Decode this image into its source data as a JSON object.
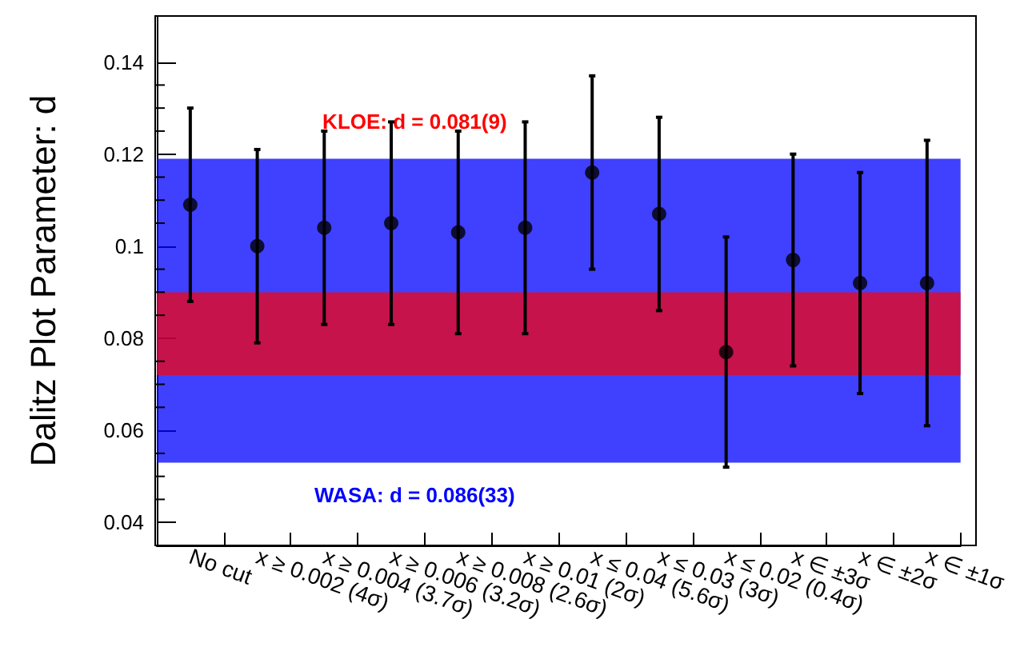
{
  "chart_data": {
    "type": "scatter",
    "ylabel": "Dalitz Plot Parameter: d",
    "categories": [
      "No cut",
      "x ≥ 0.002 (4σ)",
      "x ≥ 0.004 (3.7σ)",
      "x ≥ 0.006 (3.2σ)",
      "x ≥ 0.008 (2.6σ)",
      "x ≥ 0.01 (2σ)",
      "x ≤ 0.04 (5.6σ)",
      "x ≤ 0.03 (3σ)",
      "x ≤ 0.02 (0.4σ)",
      "x ∈ ±3σ",
      "x ∈ ±2σ",
      "x ∈ ±1σ"
    ],
    "values": [
      0.109,
      0.1,
      0.104,
      0.105,
      0.103,
      0.104,
      0.116,
      0.107,
      0.077,
      0.097,
      0.092,
      0.092
    ],
    "errors": [
      [
        0.088,
        0.13
      ],
      [
        0.079,
        0.121
      ],
      [
        0.083,
        0.125
      ],
      [
        0.083,
        0.127
      ],
      [
        0.081,
        0.125
      ],
      [
        0.081,
        0.127
      ],
      [
        0.095,
        0.137
      ],
      [
        0.086,
        0.128
      ],
      [
        0.052,
        0.102
      ],
      [
        0.074,
        0.12
      ],
      [
        0.068,
        0.116
      ],
      [
        0.061,
        0.123
      ]
    ],
    "color": "#000000",
    "marker": "circle",
    "ylim": [
      0.035,
      0.15
    ],
    "yticks": [
      0.04,
      0.06,
      0.08,
      0.1,
      0.12,
      0.14
    ],
    "bands": [
      {
        "axis": "y",
        "from": 0.053,
        "to": 0.119,
        "label": "WASA: d = 0.086(33)",
        "color": "#0000ff"
      },
      {
        "axis": "y",
        "from": 0.072,
        "to": 0.09,
        "label": "KLOE: d = 0.081(9)",
        "color": "#ff0000"
      }
    ],
    "grid": false
  }
}
